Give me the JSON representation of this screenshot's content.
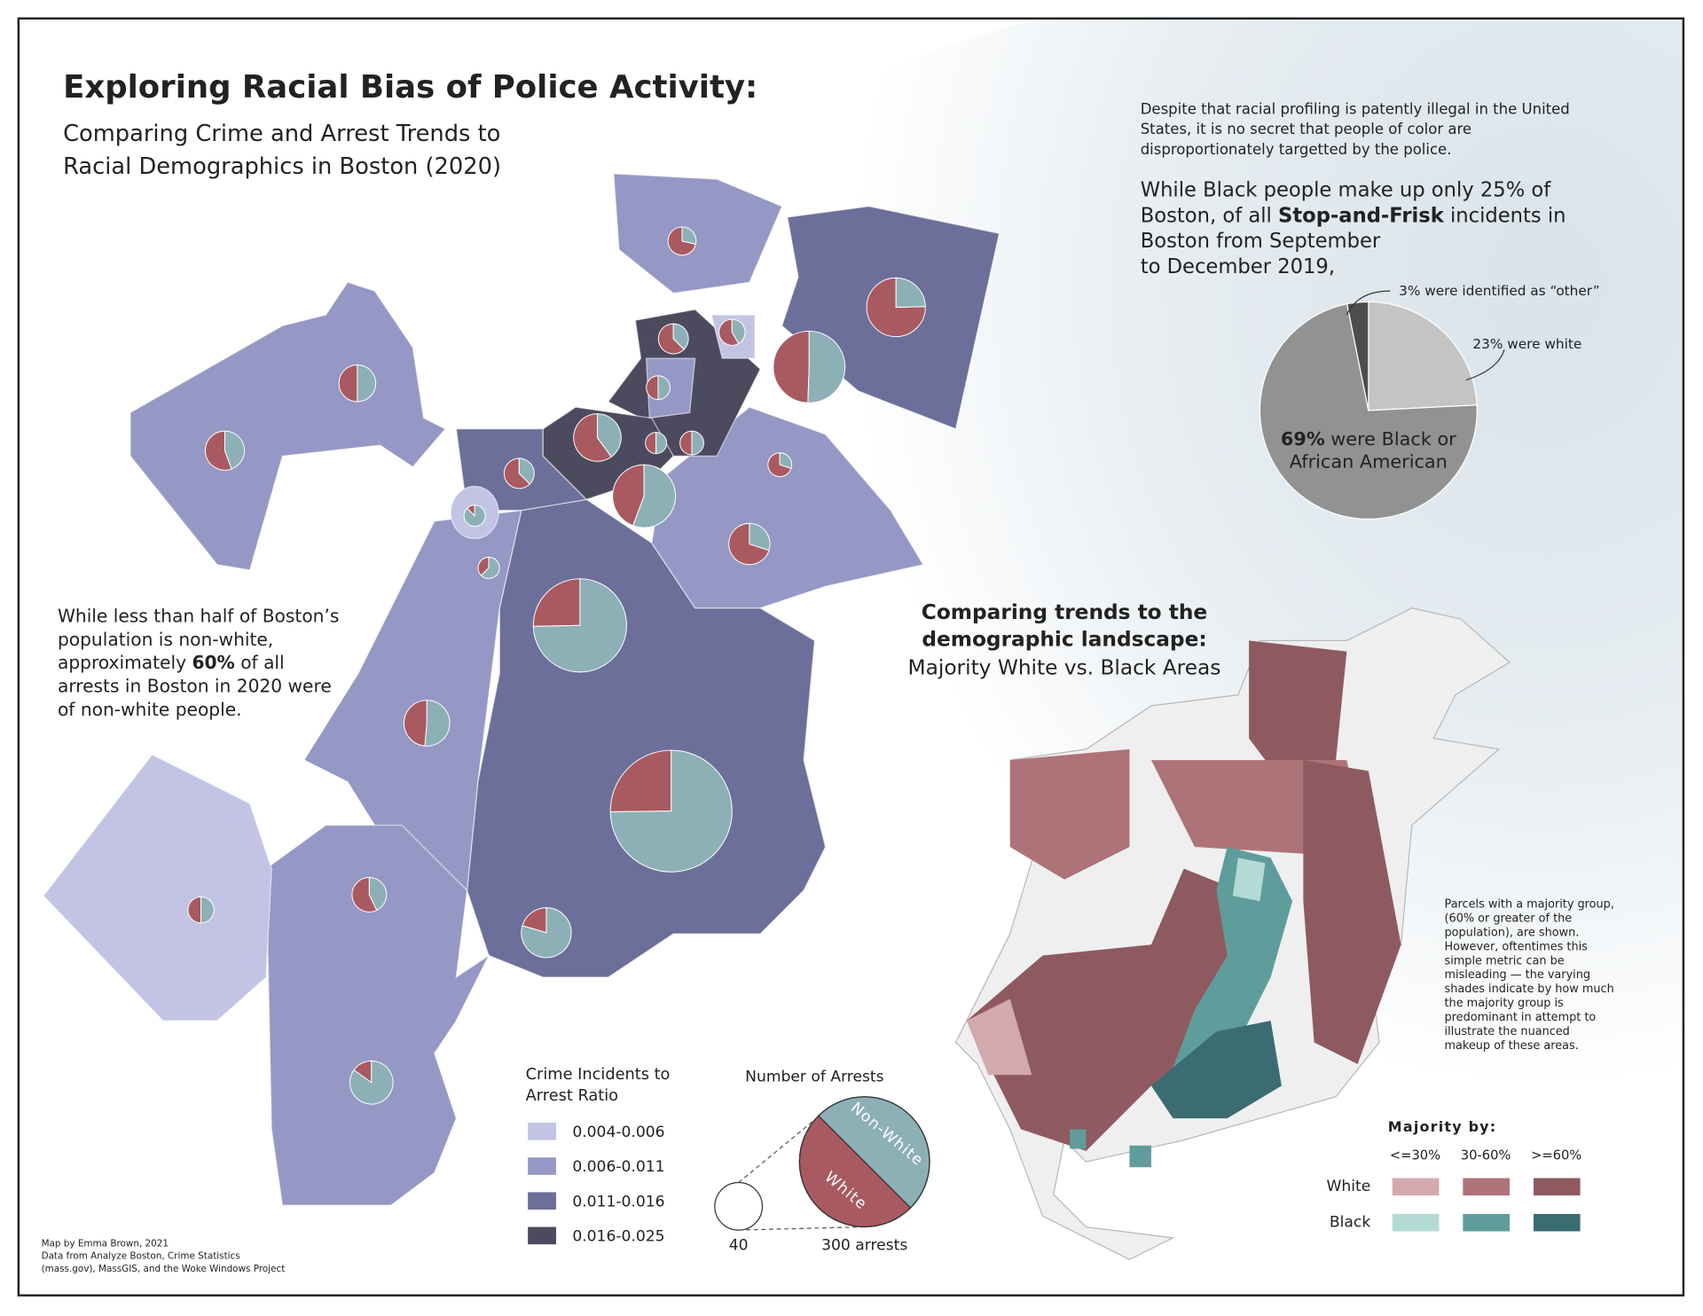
{
  "title": "Exploring Racial Bias of Police Activity:",
  "subtitle": [
    "Comparing Crime and Arrest Trends to",
    "Racial Demographics in Boston (2020)"
  ],
  "intro": [
    "Despite that racial profiling is patently illegal in the United",
    "States, it is no secret that people of color are",
    "disproportionately targetted by the police."
  ],
  "stop_frisk_text": [
    [
      "While Black people make up only 25% of"
    ],
    [
      "Boston, of all ",
      "Stop-and-Frisk",
      " incidents in"
    ],
    [
      "Boston from September"
    ],
    [
      "to December 2019,"
    ]
  ],
  "left_text": [
    [
      "While less than half of Boston’s"
    ],
    [
      "population is non-white,"
    ],
    [
      "approximately ",
      "60%",
      " of all"
    ],
    [
      "arrests in Boston in 2020 were"
    ],
    [
      "of non-white people."
    ]
  ],
  "compare_heading": [
    "Comparing trends to the",
    "demographic landscape:"
  ],
  "compare_subheading": "Majority White vs. Black Areas",
  "parcel_note": [
    "Parcels with a majority group,",
    "(60% or greater of the",
    "population), are shown.",
    "However, oftentimes this",
    "simple metric can be",
    "misleading — the varying",
    "shades indicate by how much",
    "the majority group is",
    "predominant in attempt to",
    "illustrate the nuanced",
    "makeup of these areas."
  ],
  "ratio_legend": {
    "title": [
      "Crime Incidents to",
      "Arrest Ratio"
    ],
    "items": [
      {
        "label": "0.004-0.006",
        "color": "#c3c3e3"
      },
      {
        "label": "0.006-0.011",
        "color": "#9598c4"
      },
      {
        "label": "0.011-0.016",
        "color": "#6c6f99"
      },
      {
        "label": "0.016-0.025",
        "color": "#4b4a5e"
      }
    ]
  },
  "majority_legend": {
    "title": "Majority by:",
    "columns": [
      "<=30%",
      "30-60%",
      ">=60%"
    ],
    "rows": [
      {
        "label": "White",
        "colors": [
          "#d4a9ae",
          "#ad7378",
          "#8e5a5f"
        ]
      },
      {
        "label": "Black",
        "colors": [
          "#b3dad5",
          "#5e9d9b",
          "#3b6c72"
        ]
      }
    ]
  },
  "credits": [
    "Map by Emma Brown, 2021",
    "Data from Analyze Boston, Crime Statistics",
    "(mass.gov), MassGIS, and the Woke Windows Project"
  ],
  "chart_data": [
    {
      "type": "pie",
      "title": "Number of Arrests",
      "series": [
        {
          "name": "White",
          "color": "#a85a60",
          "values": [
            10,
            46,
            12,
            15,
            10,
            7,
            45,
            5,
            24,
            4,
            5,
            7,
            10,
            31,
            1,
            3,
            21,
            39,
            18,
            66,
            12,
            6,
            9,
            5
          ]
        },
        {
          "name": "Non-White",
          "color": "#8db0b7",
          "values": [
            4,
            15,
            12,
            12,
            6,
            5,
            46,
            5,
            16,
            4,
            5,
            3,
            6,
            39,
            7,
            5,
            9,
            115,
            19,
            196,
            9,
            6,
            35,
            28
          ]
        }
      ],
      "size_legend": [
        40,
        {
          "value": 300,
          "label": "300 arrests"
        }
      ]
    },
    {
      "type": "pie",
      "values": [
        23,
        69,
        3
      ],
      "colors": [
        "#c4c4c4",
        "#929292",
        "#4d4d4d"
      ],
      "annotations": [
        "3% were identified as “other”",
        "23% were white"
      ],
      "value_label": [
        "69%",
        " were Black or",
        "African American"
      ]
    }
  ]
}
